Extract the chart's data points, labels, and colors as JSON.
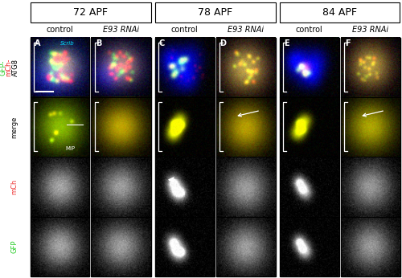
{
  "col_headers": [
    "72 APF",
    "78 APF",
    "84 APF"
  ],
  "sub_col_labels": [
    "control",
    "E93 RNAi"
  ],
  "panel_letters": [
    "A",
    "B",
    "C",
    "D",
    "E",
    "F"
  ],
  "white": "#ffffff",
  "black": "#000000",
  "header_fontsize": 9,
  "sublabel_fontsize": 7,
  "panel_letter_fontsize": 7,
  "row_label_fontsize": 6,
  "scrib_color": "#00ddff",
  "mip_label": "MIP",
  "scale_bar_color": "#ffffff",
  "bracket_color": "#ffffff",
  "arrow_color": "#ffffff"
}
